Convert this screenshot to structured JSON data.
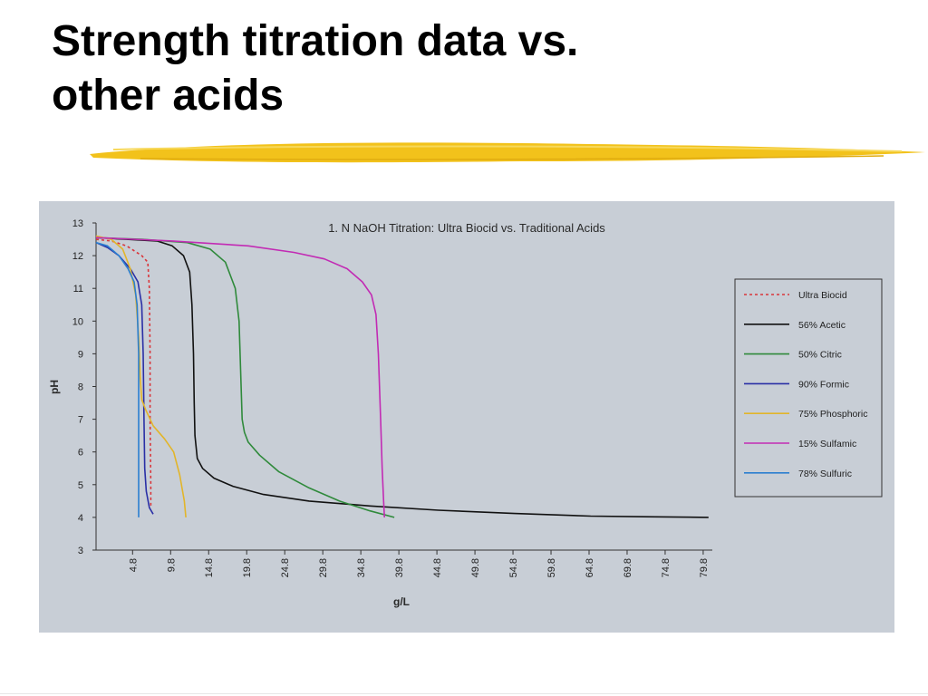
{
  "slide": {
    "title_line1": "Strength titration data vs.",
    "title_line2": "other acids"
  },
  "colors": {
    "brush": "#f2c21b",
    "panel": "#c8ced6"
  },
  "chart_data": {
    "type": "line",
    "title": "1. N NaOH Titration: Ultra Biocid vs. Traditional Acids",
    "xlabel": "g/L",
    "ylabel": "pH",
    "xlim": [
      0,
      81
    ],
    "ylim": [
      3,
      13
    ],
    "xticks": [
      "4.8",
      "9.8",
      "14.8",
      "19.8",
      "24.8",
      "29.8",
      "34.8",
      "39.8",
      "44.8",
      "49.8",
      "54.8",
      "59.8",
      "64.8",
      "69.8",
      "74.8",
      "79.8"
    ],
    "yticks": [
      "3",
      "4",
      "5",
      "6",
      "7",
      "8",
      "9",
      "10",
      "11",
      "12",
      "13"
    ],
    "grid": false,
    "legend_position": "right",
    "series": [
      {
        "name": "Ultra Biocid",
        "color": "#d9353a",
        "dash": "3,3",
        "x": [
          0,
          2,
          4,
          5,
          6,
          6.8,
          7,
          7.1,
          7.1,
          7.2,
          7.2
        ],
        "y": [
          12.5,
          12.45,
          12.3,
          12.15,
          12.0,
          11.8,
          11.0,
          9.0,
          7.0,
          5.0,
          4.3
        ]
      },
      {
        "name": "56% Acetic",
        "color": "#111111",
        "dash": "",
        "x": [
          0,
          4,
          8,
          10,
          11.5,
          12.3,
          12.6,
          12.8,
          12.9,
          13.0,
          13.3,
          14,
          15.5,
          18,
          22,
          28,
          36,
          45,
          55,
          65,
          72,
          80.5
        ],
        "y": [
          12.55,
          12.5,
          12.45,
          12.3,
          12.0,
          11.5,
          10.5,
          9.0,
          7.5,
          6.5,
          5.8,
          5.5,
          5.2,
          4.95,
          4.7,
          4.5,
          4.35,
          4.22,
          4.12,
          4.04,
          4.02,
          4.0
        ],
        "label_note": ""
      },
      {
        "name": "50% Citric",
        "color": "#2f8a3b",
        "dash": "",
        "x": [
          0,
          6,
          12,
          15,
          17,
          18.3,
          18.8,
          19.0,
          19.2,
          19.5,
          20,
          21.5,
          24,
          28,
          32,
          36,
          39.2
        ],
        "y": [
          12.55,
          12.5,
          12.4,
          12.2,
          11.8,
          11.0,
          10.0,
          8.5,
          7.0,
          6.6,
          6.3,
          5.9,
          5.4,
          4.9,
          4.5,
          4.2,
          4.0
        ]
      },
      {
        "name": "90% Formic",
        "color": "#2a2fa6",
        "dash": "",
        "x": [
          0,
          1.5,
          3,
          4.5,
          5.5,
          6.0,
          6.2,
          6.3,
          6.4,
          6.6,
          7.0,
          7.5
        ],
        "y": [
          12.4,
          12.25,
          12.0,
          11.6,
          11.2,
          10.5,
          9.0,
          7.0,
          5.5,
          4.8,
          4.3,
          4.1
        ]
      },
      {
        "name": "75% Phosphoric",
        "color": "#e2b52a",
        "dash": "",
        "x": [
          0,
          2,
          3.5,
          4.5,
          5.2,
          5.6,
          5.8,
          6.0,
          6.5,
          7.5,
          9.0,
          10.2,
          11,
          11.6,
          11.8
        ],
        "y": [
          12.6,
          12.5,
          12.2,
          11.6,
          10.8,
          9.5,
          8.3,
          7.6,
          7.3,
          6.8,
          6.4,
          6.0,
          5.3,
          4.5,
          4.0
        ]
      },
      {
        "name": "15% Sulfamic",
        "color": "#c22bb4",
        "dash": "",
        "x": [
          0,
          10,
          20,
          26,
          30,
          33,
          35,
          36.2,
          36.8,
          37.1,
          37.4,
          37.6,
          37.8,
          37.9
        ],
        "y": [
          12.55,
          12.45,
          12.3,
          12.1,
          11.9,
          11.6,
          11.2,
          10.8,
          10.2,
          9.0,
          7.0,
          5.5,
          4.5,
          4.0
        ]
      },
      {
        "name": "78% Sulfuric",
        "color": "#2b7fd0",
        "dash": "",
        "x": [
          0,
          1.5,
          3.0,
          4.2,
          5.0,
          5.4,
          5.6,
          5.6,
          5.6
        ],
        "y": [
          12.4,
          12.3,
          12.0,
          11.6,
          11.2,
          10.5,
          9.0,
          6.0,
          4.0
        ]
      }
    ]
  }
}
